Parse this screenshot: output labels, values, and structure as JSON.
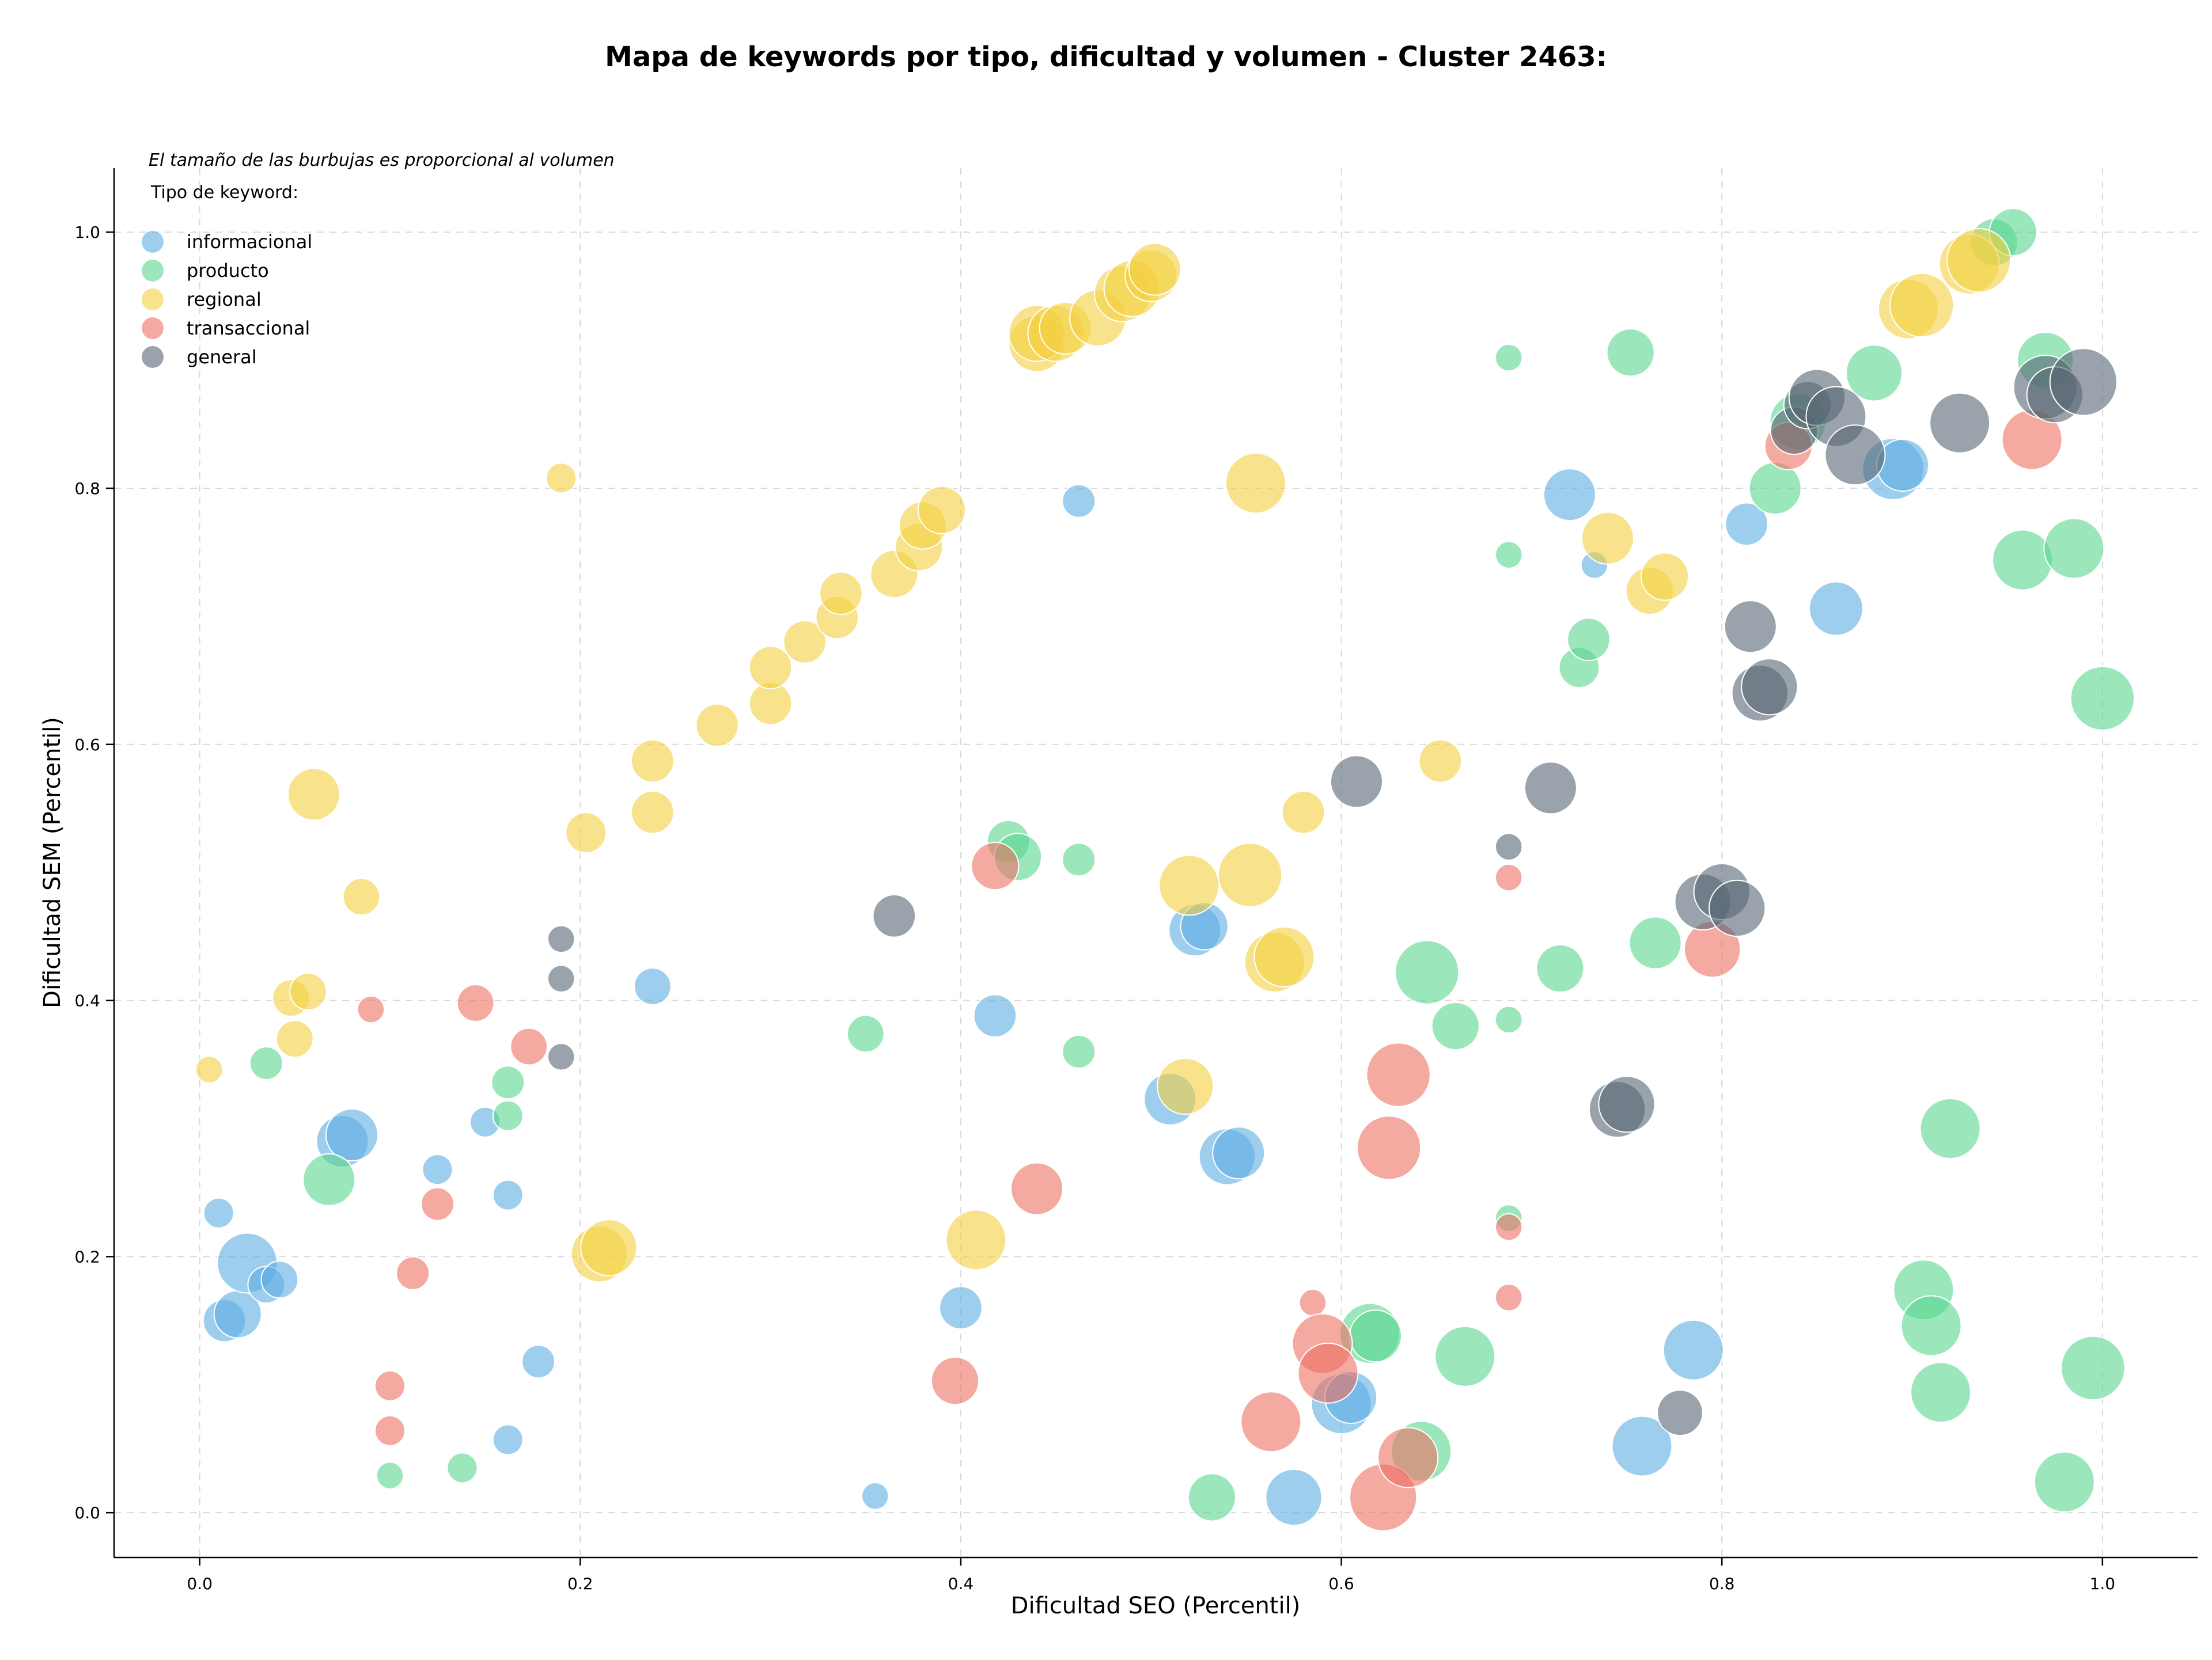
{
  "chart_data": {
    "type": "scatter",
    "title": "Mapa de keywords por tipo, dificultad y volumen - Cluster 2463:",
    "note": "El tamaño de las burbujas es proporcional al volumen",
    "xlabel": "Dificultad SEO (Percentil)",
    "ylabel": "Dificultad SEM (Percentil)",
    "xlim": [
      -0.045,
      1.05
    ],
    "ylim": [
      -0.035,
      1.05
    ],
    "xticks": [
      "0.0",
      "0.2",
      "0.4",
      "0.6",
      "0.8",
      "1.0"
    ],
    "yticks": [
      "0.0",
      "0.2",
      "0.4",
      "0.6",
      "0.8",
      "1.0"
    ],
    "grid": true,
    "legend": {
      "title": "Tipo de keyword:",
      "placement": "top-left"
    },
    "series": [
      {
        "name": "informacional",
        "color": "#5dade2",
        "points": [
          [
            0.01,
            0.234,
            1
          ],
          [
            0.013,
            0.15,
            2
          ],
          [
            0.02,
            0.155,
            2.5
          ],
          [
            0.025,
            0.195,
            4
          ],
          [
            0.035,
            0.178,
            1.5
          ],
          [
            0.042,
            0.182,
            1.5
          ],
          [
            0.075,
            0.29,
            3
          ],
          [
            0.08,
            0.295,
            3
          ],
          [
            0.125,
            0.268,
            1
          ],
          [
            0.15,
            0.305,
            1
          ],
          [
            0.162,
            0.248,
            1
          ],
          [
            0.178,
            0.118,
            1.2
          ],
          [
            0.162,
            0.057,
            1
          ],
          [
            0.238,
            0.411,
            1.5
          ],
          [
            0.355,
            0.013,
            0.8
          ],
          [
            0.4,
            0.16,
            2
          ],
          [
            0.418,
            0.388,
            2
          ],
          [
            0.462,
            0.79,
            1.2
          ],
          [
            0.51,
            0.323,
            3
          ],
          [
            0.523,
            0.455,
            3
          ],
          [
            0.528,
            0.458,
            2.5
          ],
          [
            0.54,
            0.278,
            3.5
          ],
          [
            0.546,
            0.281,
            3
          ],
          [
            0.575,
            0.012,
            3.5
          ],
          [
            0.6,
            0.085,
            4
          ],
          [
            0.605,
            0.09,
            3
          ],
          [
            0.72,
            0.795,
            3
          ],
          [
            0.733,
            0.74,
            0.8
          ],
          [
            0.758,
            0.052,
            4
          ],
          [
            0.785,
            0.127,
            4
          ],
          [
            0.813,
            0.772,
            2
          ],
          [
            0.86,
            0.706,
            3.2
          ],
          [
            0.89,
            0.815,
            4.2
          ],
          [
            0.895,
            0.818,
            3
          ]
        ]
      },
      {
        "name": "producto",
        "color": "#58d68d",
        "points": [
          [
            0.035,
            0.351,
            1.2
          ],
          [
            0.068,
            0.26,
            3
          ],
          [
            0.1,
            0.029,
            0.8
          ],
          [
            0.138,
            0.035,
            1
          ],
          [
            0.162,
            0.336,
            1.2
          ],
          [
            0.162,
            0.31,
            1
          ],
          [
            0.35,
            0.374,
            1.5
          ],
          [
            0.425,
            0.524,
            2
          ],
          [
            0.43,
            0.512,
            2.5
          ],
          [
            0.462,
            0.51,
            1.2
          ],
          [
            0.462,
            0.36,
            1.2
          ],
          [
            0.532,
            0.012,
            2.5
          ],
          [
            0.615,
            0.14,
            4
          ],
          [
            0.618,
            0.138,
            3
          ],
          [
            0.642,
            0.048,
            4
          ],
          [
            0.645,
            0.422,
            4.5
          ],
          [
            0.66,
            0.38,
            2.5
          ],
          [
            0.665,
            0.122,
            4
          ],
          [
            0.688,
            0.902,
            0.8
          ],
          [
            0.688,
            0.748,
            0.8
          ],
          [
            0.688,
            0.385,
            0.8
          ],
          [
            0.688,
            0.23,
            0.8
          ],
          [
            0.715,
            0.425,
            2.5
          ],
          [
            0.725,
            0.66,
            1.8
          ],
          [
            0.73,
            0.682,
            2
          ],
          [
            0.752,
            0.906,
            2.5
          ],
          [
            0.765,
            0.445,
            3
          ],
          [
            0.828,
            0.8,
            3
          ],
          [
            0.84,
            0.852,
            3.5
          ],
          [
            0.88,
            0.89,
            3.5
          ],
          [
            0.906,
            0.174,
            4
          ],
          [
            0.91,
            0.146,
            4
          ],
          [
            0.915,
            0.094,
            4
          ],
          [
            0.92,
            0.3,
            4
          ],
          [
            0.943,
            0.992,
            2.5
          ],
          [
            0.953,
            1.0,
            2.5
          ],
          [
            0.958,
            0.744,
            4
          ],
          [
            0.97,
            0.9,
            3.5
          ],
          [
            0.98,
            0.024,
            4
          ],
          [
            0.985,
            0.753,
            4
          ],
          [
            0.995,
            0.113,
            4.5
          ],
          [
            1.0,
            0.636,
            4.5
          ]
        ]
      },
      {
        "name": "regional",
        "color": "#f4d03f",
        "points": [
          [
            0.005,
            0.346,
            0.8
          ],
          [
            0.048,
            0.402,
            1.5
          ],
          [
            0.05,
            0.37,
            1.5
          ],
          [
            0.057,
            0.407,
            1.5
          ],
          [
            0.06,
            0.561,
            3
          ],
          [
            0.085,
            0.481,
            1.5
          ],
          [
            0.19,
            0.808,
            1
          ],
          [
            0.203,
            0.531,
            1.8
          ],
          [
            0.21,
            0.202,
            3.5
          ],
          [
            0.215,
            0.207,
            3.5
          ],
          [
            0.238,
            0.587,
            2
          ],
          [
            0.238,
            0.547,
            2
          ],
          [
            0.272,
            0.615,
            2
          ],
          [
            0.3,
            0.632,
            2
          ],
          [
            0.3,
            0.66,
            2
          ],
          [
            0.318,
            0.68,
            2
          ],
          [
            0.335,
            0.699,
            2
          ],
          [
            0.337,
            0.718,
            2
          ],
          [
            0.365,
            0.733,
            2.5
          ],
          [
            0.378,
            0.754,
            2.5
          ],
          [
            0.38,
            0.771,
            2.5
          ],
          [
            0.39,
            0.783,
            2.5
          ],
          [
            0.408,
            0.213,
            4
          ],
          [
            0.44,
            0.913,
            3.5
          ],
          [
            0.44,
            0.921,
            3.5
          ],
          [
            0.45,
            0.921,
            3.5
          ],
          [
            0.455,
            0.925,
            3
          ],
          [
            0.472,
            0.933,
            3.5
          ],
          [
            0.485,
            0.952,
            3.5
          ],
          [
            0.49,
            0.956,
            3.5
          ],
          [
            0.5,
            0.966,
            3
          ],
          [
            0.502,
            0.971,
            3
          ],
          [
            0.518,
            0.333,
            3.5
          ],
          [
            0.52,
            0.49,
            4
          ],
          [
            0.552,
            0.498,
            4.5
          ],
          [
            0.555,
            0.804,
            4
          ],
          [
            0.565,
            0.43,
            4
          ],
          [
            0.57,
            0.434,
            4
          ],
          [
            0.58,
            0.547,
            2
          ],
          [
            0.652,
            0.587,
            2
          ],
          [
            0.74,
            0.761,
            3
          ],
          [
            0.762,
            0.72,
            2.5
          ],
          [
            0.77,
            0.731,
            2.5
          ],
          [
            0.898,
            0.94,
            4
          ],
          [
            0.905,
            0.943,
            4.5
          ],
          [
            0.93,
            0.975,
            4
          ],
          [
            0.935,
            0.978,
            4.5
          ]
        ]
      },
      {
        "name": "transaccional",
        "color": "#ec7063",
        "points": [
          [
            0.09,
            0.393,
            0.8
          ],
          [
            0.1,
            0.099,
            1
          ],
          [
            0.1,
            0.064,
            1
          ],
          [
            0.112,
            0.187,
            1.2
          ],
          [
            0.125,
            0.241,
            1.2
          ],
          [
            0.145,
            0.398,
            1.5
          ],
          [
            0.173,
            0.364,
            1.5
          ],
          [
            0.397,
            0.103,
            2.5
          ],
          [
            0.418,
            0.505,
            2.5
          ],
          [
            0.44,
            0.253,
            3
          ],
          [
            0.563,
            0.071,
            4
          ],
          [
            0.585,
            0.164,
            0.8
          ],
          [
            0.59,
            0.132,
            4
          ],
          [
            0.593,
            0.109,
            4
          ],
          [
            0.622,
            0.012,
            5
          ],
          [
            0.625,
            0.285,
            4.5
          ],
          [
            0.63,
            0.342,
            4.5
          ],
          [
            0.635,
            0.043,
            4
          ],
          [
            0.688,
            0.496,
            0.8
          ],
          [
            0.688,
            0.223,
            0.8
          ],
          [
            0.688,
            0.168,
            0.8
          ],
          [
            0.795,
            0.44,
            3.5
          ],
          [
            0.835,
            0.833,
            2.5
          ],
          [
            0.963,
            0.838,
            4
          ]
        ]
      },
      {
        "name": "general",
        "color": "#566573",
        "points": [
          [
            0.19,
            0.448,
            0.8
          ],
          [
            0.19,
            0.417,
            0.8
          ],
          [
            0.19,
            0.356,
            0.8
          ],
          [
            0.365,
            0.466,
            2
          ],
          [
            0.608,
            0.571,
            3
          ],
          [
            0.688,
            0.52,
            0.8
          ],
          [
            0.71,
            0.566,
            3
          ],
          [
            0.745,
            0.315,
            3.5
          ],
          [
            0.75,
            0.319,
            3.5
          ],
          [
            0.778,
            0.078,
            2.3
          ],
          [
            0.79,
            0.477,
            3.5
          ],
          [
            0.8,
            0.485,
            3.5
          ],
          [
            0.808,
            0.472,
            3.5
          ],
          [
            0.815,
            0.692,
            3
          ],
          [
            0.82,
            0.64,
            3.5
          ],
          [
            0.825,
            0.645,
            3.5
          ],
          [
            0.838,
            0.845,
            2.5
          ],
          [
            0.845,
            0.865,
            2.5
          ],
          [
            0.85,
            0.871,
            3.5
          ],
          [
            0.86,
            0.856,
            4
          ],
          [
            0.87,
            0.826,
            4
          ],
          [
            0.925,
            0.851,
            4
          ],
          [
            0.97,
            0.879,
            4.5
          ],
          [
            0.975,
            0.873,
            3.5
          ],
          [
            0.99,
            0.883,
            5
          ]
        ]
      }
    ]
  }
}
